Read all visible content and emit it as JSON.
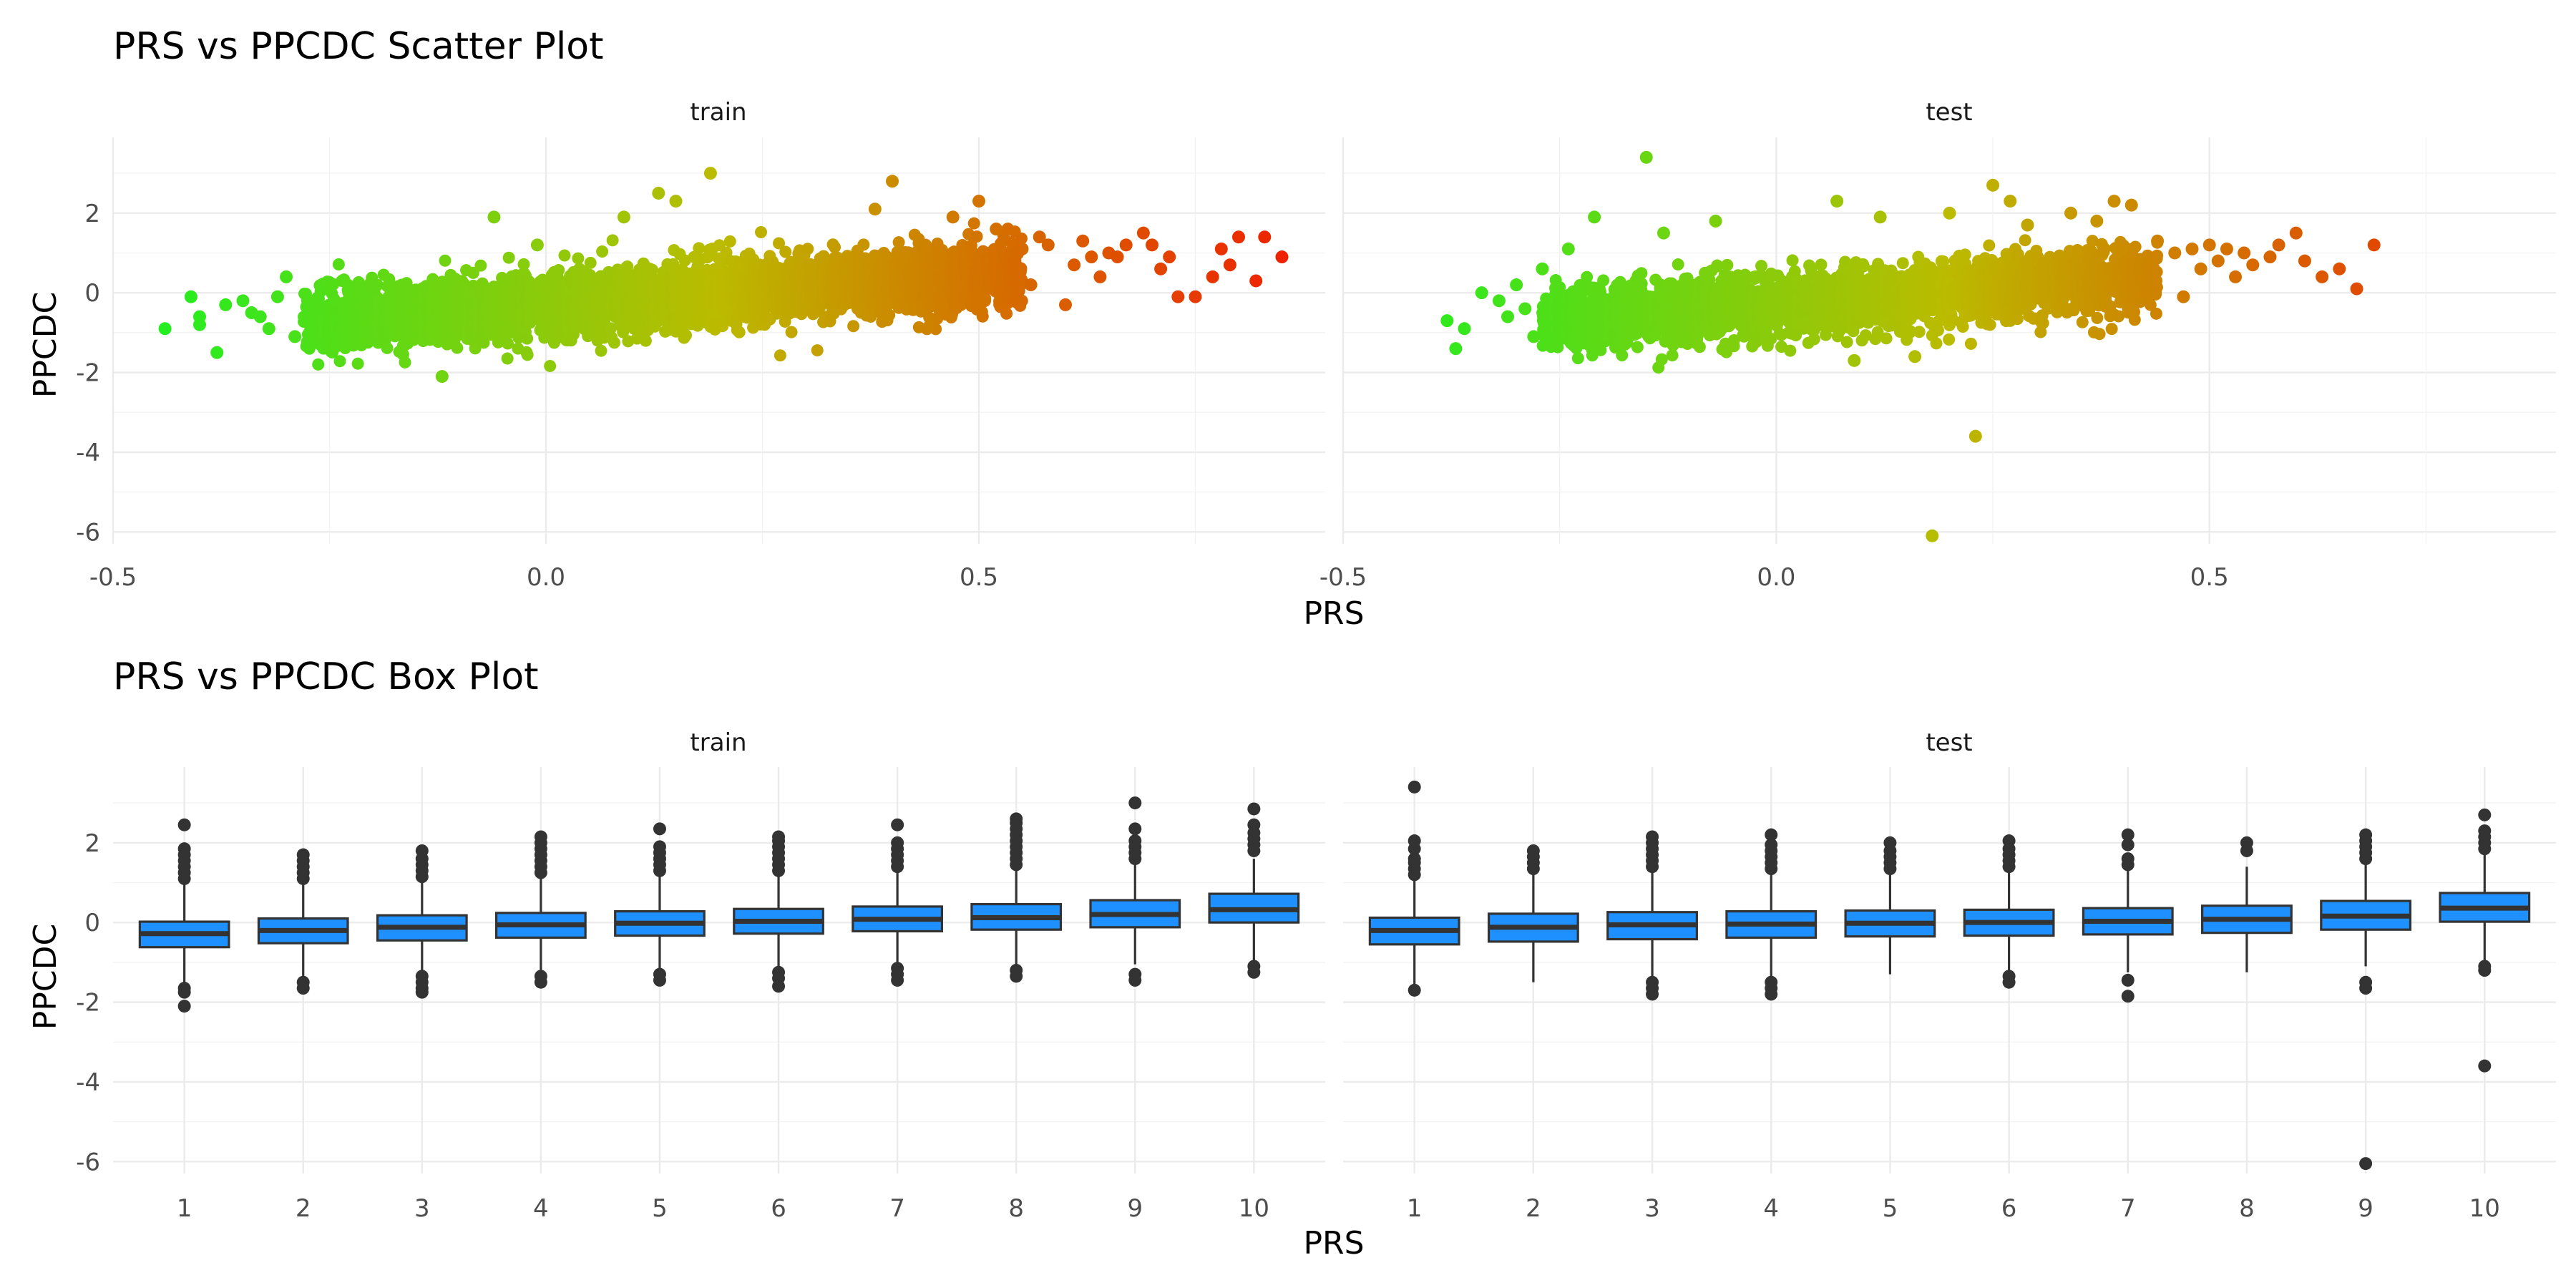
{
  "chart_data": [
    {
      "type": "scatter",
      "title": "PRS vs PPCDC Scatter Plot",
      "xlabel": "PRS",
      "ylabel": "PPCDC",
      "xlim": [
        -0.5,
        0.9
      ],
      "ylim": [
        -6.3,
        3.9
      ],
      "x_ticks": [
        "-0.5",
        "0.0",
        "0.5"
      ],
      "y_ticks": [
        "-6",
        "-4",
        "-2",
        "0",
        "2"
      ],
      "color_gradient": {
        "low": "#22ee22",
        "mid": "#bbbb00",
        "high": "#ee2200"
      },
      "panels": [
        {
          "label": "train",
          "dense_cloud": {
            "x_range": [
              -0.28,
              0.55
            ],
            "slope": 1.5,
            "intercept": -0.3,
            "spread": 0.8,
            "count": 3500
          },
          "points": [
            {
              "x": -0.44,
              "y": -0.9
            },
            {
              "x": -0.41,
              "y": -0.1
            },
            {
              "x": -0.4,
              "y": -0.6
            },
            {
              "x": -0.4,
              "y": -0.8
            },
            {
              "x": -0.38,
              "y": -1.5
            },
            {
              "x": -0.37,
              "y": -0.3
            },
            {
              "x": -0.35,
              "y": -0.2
            },
            {
              "x": -0.34,
              "y": -0.5
            },
            {
              "x": -0.33,
              "y": -0.6
            },
            {
              "x": -0.32,
              "y": -0.9
            },
            {
              "x": -0.31,
              "y": -0.1
            },
            {
              "x": -0.3,
              "y": 0.4
            },
            {
              "x": -0.29,
              "y": -1.1
            },
            {
              "x": -0.12,
              "y": -2.1
            },
            {
              "x": -0.06,
              "y": 1.9
            },
            {
              "x": -0.01,
              "y": 1.2
            },
            {
              "x": 0.09,
              "y": 1.9
            },
            {
              "x": 0.13,
              "y": 2.5
            },
            {
              "x": 0.15,
              "y": 2.3
            },
            {
              "x": 0.19,
              "y": 3.0
            },
            {
              "x": 0.38,
              "y": 2.1
            },
            {
              "x": 0.4,
              "y": 2.8
            },
            {
              "x": 0.44,
              "y": -0.9
            },
            {
              "x": 0.47,
              "y": 1.9
            },
            {
              "x": 0.5,
              "y": 2.3
            },
            {
              "x": 0.52,
              "y": 1.6
            },
            {
              "x": 0.55,
              "y": 1.1
            },
            {
              "x": 0.56,
              "y": 0.2
            },
            {
              "x": 0.57,
              "y": 1.4
            },
            {
              "x": 0.58,
              "y": 1.2
            },
            {
              "x": 0.6,
              "y": -0.3
            },
            {
              "x": 0.61,
              "y": 0.7
            },
            {
              "x": 0.62,
              "y": 1.3
            },
            {
              "x": 0.63,
              "y": 0.9
            },
            {
              "x": 0.64,
              "y": 0.4
            },
            {
              "x": 0.65,
              "y": 1.0
            },
            {
              "x": 0.66,
              "y": 0.9
            },
            {
              "x": 0.67,
              "y": 1.2
            },
            {
              "x": 0.69,
              "y": 1.5
            },
            {
              "x": 0.7,
              "y": 1.2
            },
            {
              "x": 0.71,
              "y": 0.6
            },
            {
              "x": 0.72,
              "y": 0.9
            },
            {
              "x": 0.73,
              "y": -0.1
            },
            {
              "x": 0.75,
              "y": -0.1
            },
            {
              "x": 0.77,
              "y": 0.4
            },
            {
              "x": 0.78,
              "y": 1.1
            },
            {
              "x": 0.79,
              "y": 0.7
            },
            {
              "x": 0.8,
              "y": 1.4
            },
            {
              "x": 0.82,
              "y": 0.3
            },
            {
              "x": 0.83,
              "y": 1.4
            },
            {
              "x": 0.85,
              "y": 0.9
            }
          ]
        },
        {
          "label": "test",
          "dense_cloud": {
            "x_range": [
              -0.27,
              0.44
            ],
            "slope": 1.5,
            "intercept": -0.3,
            "spread": 0.8,
            "count": 2500
          },
          "points": [
            {
              "x": -0.38,
              "y": -0.7
            },
            {
              "x": -0.37,
              "y": -1.4
            },
            {
              "x": -0.36,
              "y": -0.9
            },
            {
              "x": -0.34,
              "y": 0.0
            },
            {
              "x": -0.32,
              "y": -0.2
            },
            {
              "x": -0.31,
              "y": -0.6
            },
            {
              "x": -0.3,
              "y": 0.2
            },
            {
              "x": -0.29,
              "y": -0.4
            },
            {
              "x": -0.28,
              "y": -1.1
            },
            {
              "x": -0.27,
              "y": 0.6
            },
            {
              "x": -0.24,
              "y": 1.1
            },
            {
              "x": -0.21,
              "y": 1.9
            },
            {
              "x": -0.15,
              "y": 3.4
            },
            {
              "x": -0.13,
              "y": 1.5
            },
            {
              "x": -0.07,
              "y": 1.8
            },
            {
              "x": 0.07,
              "y": 2.3
            },
            {
              "x": 0.09,
              "y": -1.7
            },
            {
              "x": 0.12,
              "y": 1.9
            },
            {
              "x": 0.16,
              "y": -1.6
            },
            {
              "x": 0.18,
              "y": -6.1
            },
            {
              "x": 0.2,
              "y": 2.0
            },
            {
              "x": 0.23,
              "y": -3.6
            },
            {
              "x": 0.25,
              "y": 2.7
            },
            {
              "x": 0.27,
              "y": 2.3
            },
            {
              "x": 0.29,
              "y": 1.7
            },
            {
              "x": 0.34,
              "y": 2.0
            },
            {
              "x": 0.37,
              "y": 1.8
            },
            {
              "x": 0.39,
              "y": 2.3
            },
            {
              "x": 0.4,
              "y": 1.1
            },
            {
              "x": 0.41,
              "y": 2.2
            },
            {
              "x": 0.44,
              "y": 1.3
            },
            {
              "x": 0.46,
              "y": 1.0
            },
            {
              "x": 0.47,
              "y": -0.1
            },
            {
              "x": 0.48,
              "y": 1.1
            },
            {
              "x": 0.49,
              "y": 0.6
            },
            {
              "x": 0.5,
              "y": 1.2
            },
            {
              "x": 0.51,
              "y": 0.8
            },
            {
              "x": 0.52,
              "y": 1.1
            },
            {
              "x": 0.53,
              "y": 0.4
            },
            {
              "x": 0.54,
              "y": 1.0
            },
            {
              "x": 0.55,
              "y": 0.7
            },
            {
              "x": 0.57,
              "y": 0.9
            },
            {
              "x": 0.58,
              "y": 1.2
            },
            {
              "x": 0.6,
              "y": 1.5
            },
            {
              "x": 0.61,
              "y": 0.8
            },
            {
              "x": 0.63,
              "y": 0.4
            },
            {
              "x": 0.65,
              "y": 0.6
            },
            {
              "x": 0.67,
              "y": 0.1
            },
            {
              "x": 0.69,
              "y": 1.2
            }
          ]
        }
      ]
    },
    {
      "type": "box",
      "title": "PRS vs PPCDC Box Plot",
      "xlabel": "PRS",
      "ylabel": "PPCDC",
      "categories": [
        "1",
        "2",
        "3",
        "4",
        "5",
        "6",
        "7",
        "8",
        "9",
        "10"
      ],
      "ylim": [
        -6.3,
        3.9
      ],
      "y_ticks": [
        "-6",
        "-4",
        "-2",
        "0",
        "2"
      ],
      "box_fill": "#1e90ff",
      "panels": [
        {
          "label": "train",
          "boxes": [
            {
              "q1": -0.62,
              "median": -0.28,
              "q3": 0.02,
              "low": -1.55,
              "high": 0.98,
              "outliers": [
                -1.65,
                -1.75,
                -2.1,
                1.1,
                1.25,
                1.4,
                1.55,
                1.7,
                1.85,
                2.45
              ]
            },
            {
              "q1": -0.52,
              "median": -0.2,
              "q3": 0.1,
              "low": -1.45,
              "high": 1.0,
              "outliers": [
                -1.5,
                -1.65,
                1.1,
                1.25,
                1.4,
                1.55,
                1.7
              ]
            },
            {
              "q1": -0.45,
              "median": -0.12,
              "q3": 0.18,
              "low": -1.3,
              "high": 1.05,
              "outliers": [
                -1.35,
                -1.5,
                -1.65,
                -1.75,
                1.15,
                1.3,
                1.45,
                1.6,
                1.8
              ]
            },
            {
              "q1": -0.38,
              "median": -0.06,
              "q3": 0.24,
              "low": -1.3,
              "high": 1.15,
              "outliers": [
                -1.35,
                -1.5,
                1.25,
                1.4,
                1.55,
                1.7,
                1.85,
                2.0,
                2.15
              ]
            },
            {
              "q1": -0.33,
              "median": -0.02,
              "q3": 0.28,
              "low": -1.25,
              "high": 1.15,
              "outliers": [
                -1.3,
                -1.45,
                1.3,
                1.45,
                1.6,
                1.75,
                1.9,
                2.35
              ]
            },
            {
              "q1": -0.28,
              "median": 0.03,
              "q3": 0.34,
              "low": -1.2,
              "high": 1.2,
              "outliers": [
                -1.25,
                -1.4,
                -1.6,
                1.3,
                1.45,
                1.6,
                1.75,
                1.9,
                2.05,
                2.15
              ]
            },
            {
              "q1": -0.22,
              "median": 0.08,
              "q3": 0.4,
              "low": -1.1,
              "high": 1.3,
              "outliers": [
                -1.15,
                -1.3,
                -1.45,
                1.4,
                1.55,
                1.7,
                1.85,
                2.0,
                2.45
              ]
            },
            {
              "q1": -0.18,
              "median": 0.12,
              "q3": 0.46,
              "low": -1.1,
              "high": 1.35,
              "outliers": [
                -1.2,
                -1.35,
                1.45,
                1.6,
                1.75,
                1.9,
                2.05,
                2.2,
                2.35,
                2.5,
                2.6
              ]
            },
            {
              "q1": -0.12,
              "median": 0.2,
              "q3": 0.56,
              "low": -1.05,
              "high": 1.45,
              "outliers": [
                -1.3,
                -1.45,
                1.6,
                1.75,
                1.9,
                2.05,
                2.35,
                3.0
              ]
            },
            {
              "q1": 0.0,
              "median": 0.32,
              "q3": 0.72,
              "low": -1.0,
              "high": 1.6,
              "outliers": [
                -1.1,
                -1.25,
                1.8,
                1.95,
                2.1,
                2.25,
                2.45,
                2.85
              ]
            }
          ]
        },
        {
          "label": "test",
          "boxes": [
            {
              "q1": -0.55,
              "median": -0.2,
              "q3": 0.12,
              "low": -1.55,
              "high": 1.1,
              "outliers": [
                -1.7,
                1.2,
                1.35,
                1.5,
                1.6,
                1.85,
                2.05,
                3.4
              ]
            },
            {
              "q1": -0.48,
              "median": -0.12,
              "q3": 0.22,
              "low": -1.5,
              "high": 1.2,
              "outliers": [
                1.35,
                1.5,
                1.65,
                1.8
              ]
            },
            {
              "q1": -0.42,
              "median": -0.06,
              "q3": 0.26,
              "low": -1.35,
              "high": 1.3,
              "outliers": [
                -1.5,
                -1.65,
                -1.8,
                1.4,
                1.55,
                1.7,
                1.85,
                2.0,
                2.15
              ]
            },
            {
              "q1": -0.38,
              "median": -0.04,
              "q3": 0.28,
              "low": -1.35,
              "high": 1.25,
              "outliers": [
                -1.5,
                -1.65,
                -1.8,
                1.35,
                1.5,
                1.65,
                1.8,
                1.95,
                2.2
              ]
            },
            {
              "q1": -0.35,
              "median": -0.02,
              "q3": 0.3,
              "low": -1.3,
              "high": 1.25,
              "outliers": [
                1.35,
                1.5,
                1.65,
                1.8,
                2.0
              ]
            },
            {
              "q1": -0.33,
              "median": 0.0,
              "q3": 0.32,
              "low": -1.3,
              "high": 1.3,
              "outliers": [
                -1.35,
                -1.5,
                1.4,
                1.55,
                1.7,
                1.85,
                2.05
              ]
            },
            {
              "q1": -0.3,
              "median": 0.03,
              "q3": 0.36,
              "low": -1.25,
              "high": 1.35,
              "outliers": [
                -1.45,
                -1.85,
                1.45,
                1.6,
                1.95,
                2.2
              ]
            },
            {
              "q1": -0.26,
              "median": 0.08,
              "q3": 0.42,
              "low": -1.25,
              "high": 1.4,
              "outliers": [
                1.8,
                2.0
              ]
            },
            {
              "q1": -0.18,
              "median": 0.16,
              "q3": 0.54,
              "low": -1.1,
              "high": 1.5,
              "outliers": [
                -1.5,
                -1.65,
                1.6,
                1.75,
                1.9,
                2.05,
                2.2,
                -6.05
              ]
            },
            {
              "q1": 0.02,
              "median": 0.36,
              "q3": 0.74,
              "low": -1.0,
              "high": 1.7,
              "outliers": [
                -1.1,
                -1.2,
                1.85,
                2.0,
                2.15,
                2.3,
                2.7,
                -3.6
              ]
            }
          ]
        }
      ]
    }
  ]
}
